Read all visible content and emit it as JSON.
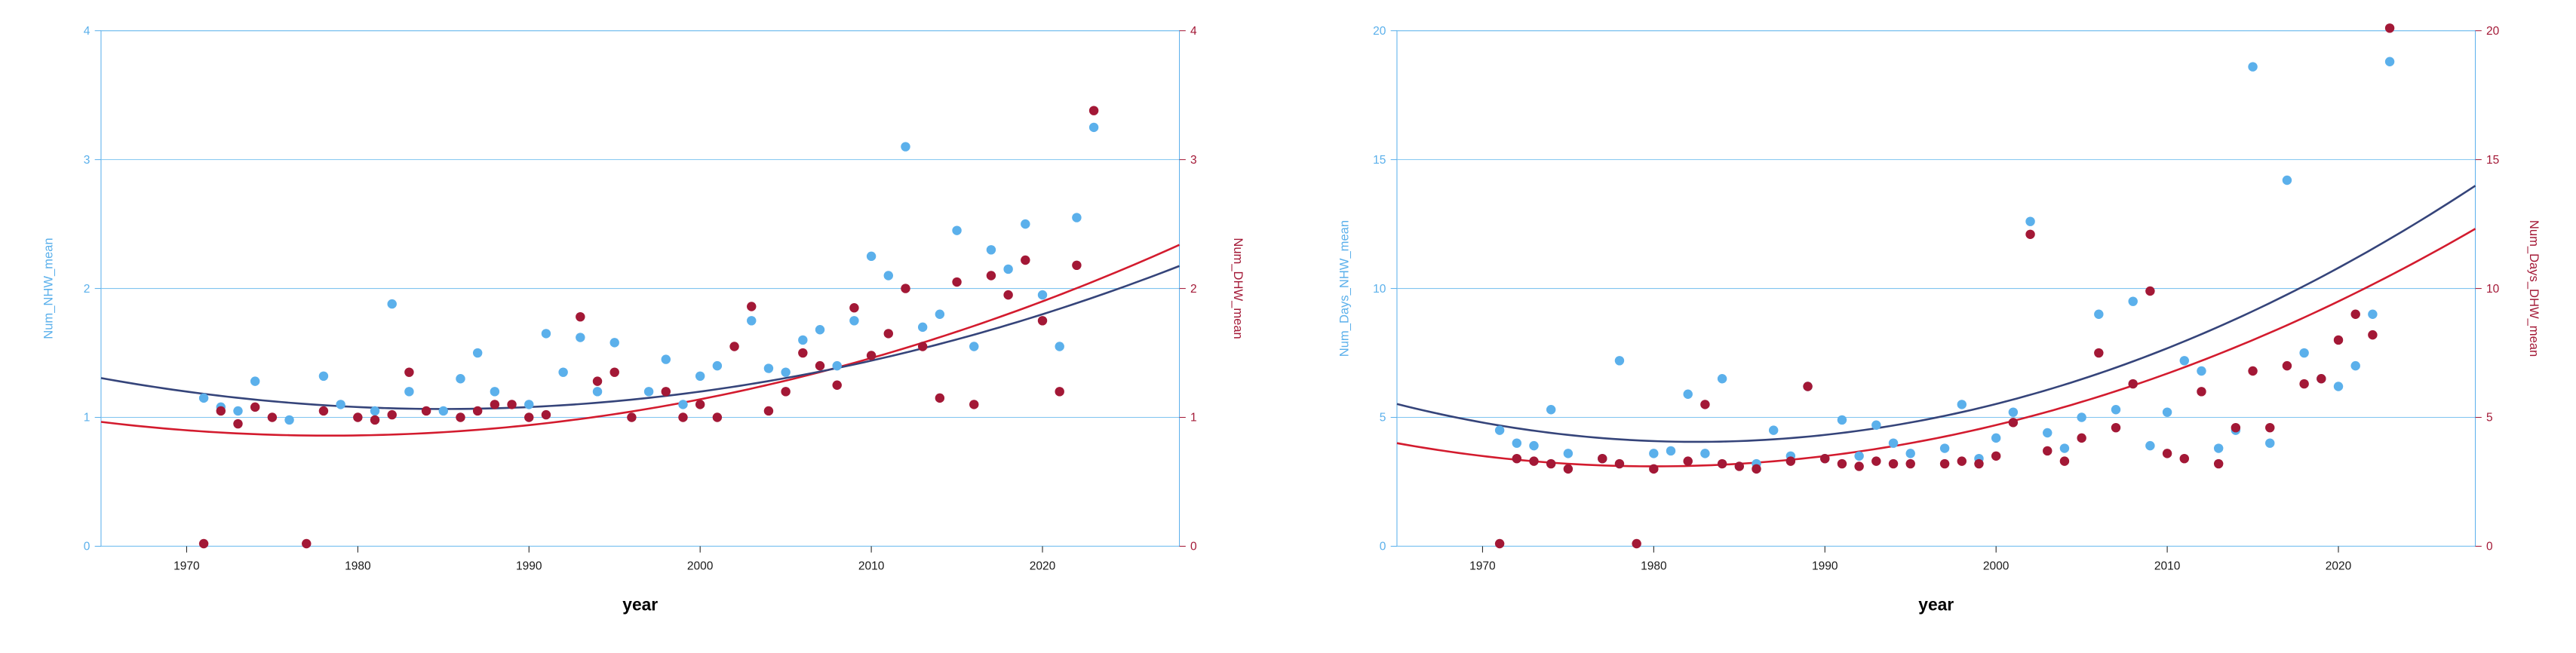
{
  "figure": {
    "background_color": "#ffffff",
    "panel_border_color": "#5bb0eb",
    "grid_color": "#7fc4f0",
    "grid_width": 1,
    "panel_border_width": 1,
    "marker_radius": 6,
    "curve_width": 2.5,
    "font_family": "Arial, Helvetica, sans-serif",
    "xlabel": "year",
    "xlabel_fontsize": 22,
    "xlabel_fontweight": "bold",
    "xlabel_color": "#000000",
    "tick_fontsize": 15,
    "tick_color": "#1a1a1a",
    "ylabel_fontsize": 16,
    "series": {
      "blue": {
        "point_color": "#5bb0eb",
        "curve_color": "#35447a"
      },
      "red": {
        "point_color": "#a31836",
        "curve_color": "#d31b2e"
      }
    },
    "panels": [
      {
        "id": "left",
        "x": {
          "min": 1965,
          "max": 2028,
          "ticks": [
            1970,
            1980,
            1990,
            2000,
            2010,
            2020
          ]
        },
        "y_left": {
          "min": 0,
          "max": 4,
          "ticks": [
            0,
            1,
            2,
            3,
            4
          ],
          "label": "Num_NHW_mean",
          "label_color": "#5bb0eb"
        },
        "y_right": {
          "min": 0,
          "max": 4,
          "ticks": [
            0,
            1,
            2,
            3,
            4
          ],
          "label": "Num_DHW_mean",
          "label_color": "#a31836"
        },
        "blue_points": [
          [
            1971,
            1.15
          ],
          [
            1972,
            1.08
          ],
          [
            1973,
            1.05
          ],
          [
            1974,
            1.28
          ],
          [
            1976,
            0.98
          ],
          [
            1978,
            1.32
          ],
          [
            1979,
            1.1
          ],
          [
            1981,
            1.05
          ],
          [
            1982,
            1.88
          ],
          [
            1983,
            1.2
          ],
          [
            1985,
            1.05
          ],
          [
            1986,
            1.3
          ],
          [
            1987,
            1.5
          ],
          [
            1988,
            1.2
          ],
          [
            1990,
            1.1
          ],
          [
            1991,
            1.65
          ],
          [
            1992,
            1.35
          ],
          [
            1993,
            1.62
          ],
          [
            1994,
            1.2
          ],
          [
            1995,
            1.58
          ],
          [
            1997,
            1.2
          ],
          [
            1998,
            1.45
          ],
          [
            1999,
            1.1
          ],
          [
            2000,
            1.32
          ],
          [
            2001,
            1.4
          ],
          [
            2003,
            1.75
          ],
          [
            2004,
            1.38
          ],
          [
            2005,
            1.35
          ],
          [
            2006,
            1.6
          ],
          [
            2007,
            1.68
          ],
          [
            2008,
            1.4
          ],
          [
            2009,
            1.75
          ],
          [
            2010,
            2.25
          ],
          [
            2011,
            2.1
          ],
          [
            2012,
            3.1
          ],
          [
            2013,
            1.7
          ],
          [
            2014,
            1.8
          ],
          [
            2015,
            2.45
          ],
          [
            2016,
            1.55
          ],
          [
            2017,
            2.3
          ],
          [
            2018,
            2.15
          ],
          [
            2019,
            2.5
          ],
          [
            2020,
            1.95
          ],
          [
            2021,
            1.55
          ],
          [
            2022,
            2.55
          ],
          [
            2023,
            3.25
          ]
        ],
        "red_points": [
          [
            1971,
            0.02
          ],
          [
            1972,
            1.05
          ],
          [
            1973,
            0.95
          ],
          [
            1974,
            1.08
          ],
          [
            1975,
            1.0
          ],
          [
            1977,
            0.02
          ],
          [
            1978,
            1.05
          ],
          [
            1980,
            1.0
          ],
          [
            1981,
            0.98
          ],
          [
            1982,
            1.02
          ],
          [
            1983,
            1.35
          ],
          [
            1984,
            1.05
          ],
          [
            1986,
            1.0
          ],
          [
            1987,
            1.05
          ],
          [
            1988,
            1.1
          ],
          [
            1989,
            1.1
          ],
          [
            1990,
            1.0
          ],
          [
            1991,
            1.02
          ],
          [
            1993,
            1.78
          ],
          [
            1994,
            1.28
          ],
          [
            1995,
            1.35
          ],
          [
            1996,
            1.0
          ],
          [
            1998,
            1.2
          ],
          [
            1999,
            1.0
          ],
          [
            2000,
            1.1
          ],
          [
            2001,
            1.0
          ],
          [
            2002,
            1.55
          ],
          [
            2003,
            1.86
          ],
          [
            2004,
            1.05
          ],
          [
            2005,
            1.2
          ],
          [
            2006,
            1.5
          ],
          [
            2007,
            1.4
          ],
          [
            2008,
            1.25
          ],
          [
            2009,
            1.85
          ],
          [
            2010,
            1.48
          ],
          [
            2011,
            1.65
          ],
          [
            2012,
            2.0
          ],
          [
            2013,
            1.55
          ],
          [
            2014,
            1.15
          ],
          [
            2015,
            2.05
          ],
          [
            2016,
            1.1
          ],
          [
            2017,
            2.1
          ],
          [
            2018,
            1.95
          ],
          [
            2019,
            2.22
          ],
          [
            2020,
            1.75
          ],
          [
            2021,
            1.2
          ],
          [
            2022,
            2.18
          ],
          [
            2023,
            3.38
          ]
        ],
        "blue_curve": {
          "a": 0.0006,
          "b": -0.018,
          "c": 1.2,
          "x0": 1970
        },
        "red_curve": {
          "a": 0.0006,
          "b": -0.01,
          "c": 0.9,
          "x0": 1970
        }
      },
      {
        "id": "right",
        "x": {
          "min": 1965,
          "max": 2028,
          "ticks": [
            1970,
            1980,
            1990,
            2000,
            2010,
            2020
          ]
        },
        "y_left": {
          "min": 0,
          "max": 20,
          "ticks": [
            0,
            5,
            10,
            15,
            20
          ],
          "label": "Num_Days_NHW_mean",
          "label_color": "#5bb0eb"
        },
        "y_right": {
          "min": 0,
          "max": 20,
          "ticks": [
            0,
            5,
            10,
            15,
            20
          ],
          "label": "Num_Days_DHW_mean",
          "label_color": "#a31836"
        },
        "blue_points": [
          [
            1971,
            4.5
          ],
          [
            1972,
            4.0
          ],
          [
            1973,
            3.9
          ],
          [
            1974,
            5.3
          ],
          [
            1975,
            3.6
          ],
          [
            1977,
            3.4
          ],
          [
            1978,
            7.2
          ],
          [
            1980,
            3.6
          ],
          [
            1981,
            3.7
          ],
          [
            1982,
            5.9
          ],
          [
            1983,
            3.6
          ],
          [
            1984,
            6.5
          ],
          [
            1986,
            3.2
          ],
          [
            1987,
            4.5
          ],
          [
            1988,
            3.5
          ],
          [
            1989,
            6.2
          ],
          [
            1990,
            3.4
          ],
          [
            1991,
            4.9
          ],
          [
            1992,
            3.5
          ],
          [
            1993,
            4.7
          ],
          [
            1994,
            4.0
          ],
          [
            1995,
            3.6
          ],
          [
            1997,
            3.8
          ],
          [
            1998,
            5.5
          ],
          [
            1999,
            3.4
          ],
          [
            2000,
            4.2
          ],
          [
            2001,
            5.2
          ],
          [
            2002,
            12.6
          ],
          [
            2003,
            4.4
          ],
          [
            2004,
            3.8
          ],
          [
            2005,
            5.0
          ],
          [
            2006,
            9.0
          ],
          [
            2007,
            5.3
          ],
          [
            2008,
            9.5
          ],
          [
            2009,
            3.9
          ],
          [
            2010,
            5.2
          ],
          [
            2011,
            7.2
          ],
          [
            2012,
            6.8
          ],
          [
            2013,
            3.8
          ],
          [
            2014,
            4.5
          ],
          [
            2015,
            18.6
          ],
          [
            2016,
            4.0
          ],
          [
            2017,
            14.2
          ],
          [
            2018,
            7.5
          ],
          [
            2019,
            6.5
          ],
          [
            2020,
            6.2
          ],
          [
            2021,
            7.0
          ],
          [
            2022,
            9.0
          ],
          [
            2023,
            18.8
          ]
        ],
        "red_points": [
          [
            1971,
            0.1
          ],
          [
            1972,
            3.4
          ],
          [
            1973,
            3.3
          ],
          [
            1974,
            3.2
          ],
          [
            1975,
            3.0
          ],
          [
            1977,
            3.4
          ],
          [
            1978,
            3.2
          ],
          [
            1979,
            0.1
          ],
          [
            1980,
            3.0
          ],
          [
            1982,
            3.3
          ],
          [
            1983,
            5.5
          ],
          [
            1984,
            3.2
          ],
          [
            1985,
            3.1
          ],
          [
            1986,
            3.0
          ],
          [
            1988,
            3.3
          ],
          [
            1989,
            6.2
          ],
          [
            1990,
            3.4
          ],
          [
            1991,
            3.2
          ],
          [
            1992,
            3.1
          ],
          [
            1993,
            3.3
          ],
          [
            1994,
            3.2
          ],
          [
            1995,
            3.2
          ],
          [
            1997,
            3.2
          ],
          [
            1998,
            3.3
          ],
          [
            1999,
            3.2
          ],
          [
            2000,
            3.5
          ],
          [
            2001,
            4.8
          ],
          [
            2002,
            12.1
          ],
          [
            2003,
            3.7
          ],
          [
            2004,
            3.3
          ],
          [
            2005,
            4.2
          ],
          [
            2006,
            7.5
          ],
          [
            2007,
            4.6
          ],
          [
            2008,
            6.3
          ],
          [
            2009,
            9.9
          ],
          [
            2010,
            3.6
          ],
          [
            2011,
            3.4
          ],
          [
            2012,
            6.0
          ],
          [
            2013,
            3.2
          ],
          [
            2014,
            4.6
          ],
          [
            2015,
            6.8
          ],
          [
            2016,
            4.6
          ],
          [
            2017,
            7.0
          ],
          [
            2018,
            6.3
          ],
          [
            2019,
            6.5
          ],
          [
            2020,
            8.0
          ],
          [
            2021,
            9.0
          ],
          [
            2022,
            8.2
          ],
          [
            2023,
            20.1
          ]
        ],
        "blue_curve": {
          "a": 0.0048,
          "b": -0.12,
          "c": 4.8,
          "x0": 1970
        },
        "red_curve": {
          "a": 0.004,
          "b": -0.08,
          "c": 3.5,
          "x0": 1970
        }
      }
    ]
  }
}
